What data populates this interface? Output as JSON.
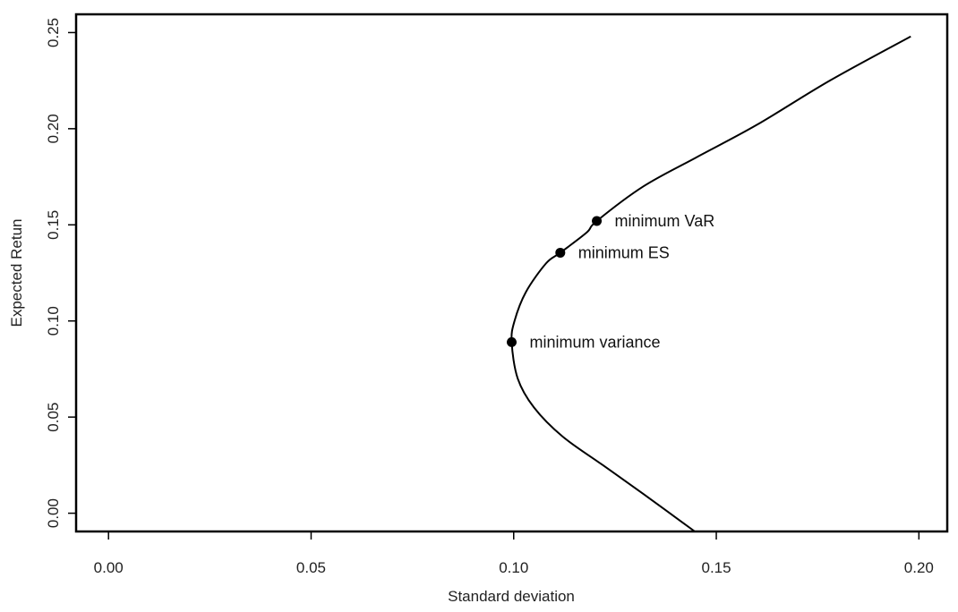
{
  "chart_data": {
    "type": "line",
    "title": "",
    "xlabel": "Standard deviation",
    "ylabel": "Expected Retun",
    "xlim": [
      -0.008,
      0.207
    ],
    "ylim": [
      -0.0095,
      0.2595
    ],
    "x_ticks": [
      0.0,
      0.05,
      0.1,
      0.15,
      0.2
    ],
    "x_tick_labels": [
      "0.00",
      "0.05",
      "0.10",
      "0.15",
      "0.20"
    ],
    "y_ticks": [
      0.0,
      0.05,
      0.1,
      0.15,
      0.2,
      0.25
    ],
    "y_tick_labels": [
      "0.00",
      "0.05",
      "0.10",
      "0.15",
      "0.20",
      "0.25"
    ],
    "grid": false,
    "series": [
      {
        "values": [
          {
            "x": 0.1447,
            "y": -0.0095
          },
          {
            "x": 0.132,
            "y": 0.01
          },
          {
            "x": 0.122,
            "y": 0.025
          },
          {
            "x": 0.112,
            "y": 0.04
          },
          {
            "x": 0.105,
            "y": 0.055
          },
          {
            "x": 0.101,
            "y": 0.07
          },
          {
            "x": 0.0995,
            "y": 0.089
          },
          {
            "x": 0.1002,
            "y": 0.1
          },
          {
            "x": 0.103,
            "y": 0.115
          },
          {
            "x": 0.108,
            "y": 0.13
          },
          {
            "x": 0.1115,
            "y": 0.1355
          },
          {
            "x": 0.118,
            "y": 0.146
          },
          {
            "x": 0.1205,
            "y": 0.152
          },
          {
            "x": 0.132,
            "y": 0.17
          },
          {
            "x": 0.145,
            "y": 0.185
          },
          {
            "x": 0.16,
            "y": 0.202
          },
          {
            "x": 0.178,
            "y": 0.225
          },
          {
            "x": 0.198,
            "y": 0.248
          }
        ]
      }
    ],
    "points": [
      {
        "label": "minimum variance",
        "x": 0.0995,
        "y": 0.089
      },
      {
        "label": "minimum ES",
        "x": 0.1115,
        "y": 0.1355
      },
      {
        "label": "minimum VaR",
        "x": 0.1205,
        "y": 0.152
      }
    ]
  }
}
